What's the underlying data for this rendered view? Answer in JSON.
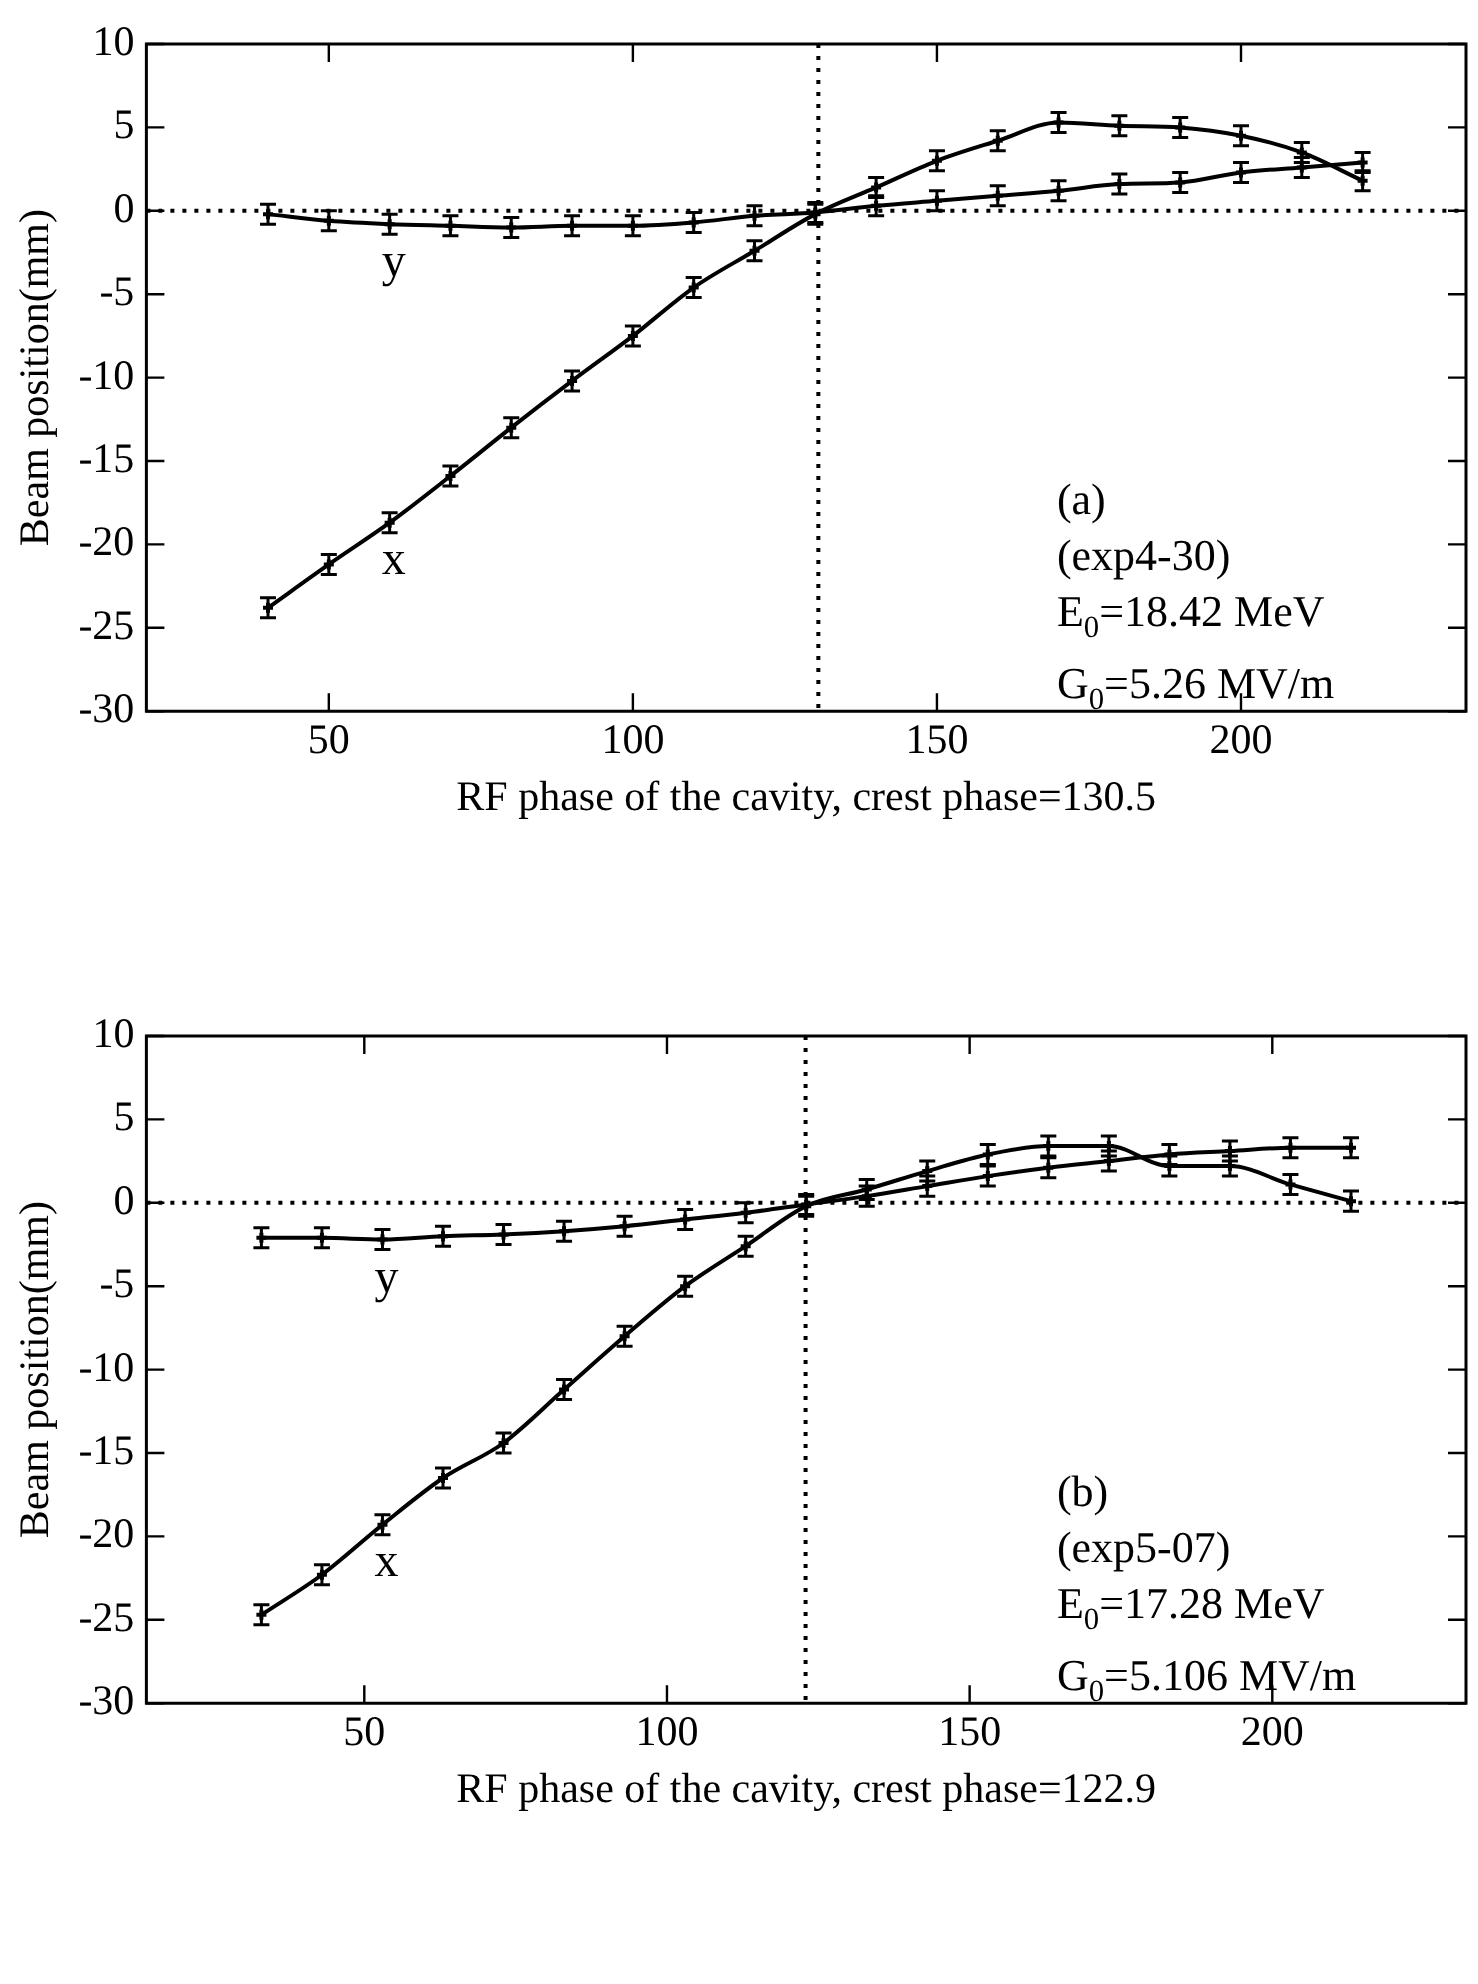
{
  "chart_data": [
    {
      "type": "line",
      "xlabel": "RF phase of the cavity, crest phase=130.5",
      "ylabel": "Beam position(mm)",
      "xlim": [
        20,
        237
      ],
      "xticks": [
        50,
        100,
        150,
        200
      ],
      "ylim": [
        -30,
        10
      ],
      "yticks": [
        -30,
        -25,
        -20,
        -15,
        -10,
        -5,
        0,
        5,
        10
      ],
      "grid": false,
      "legend": false,
      "marker": "cross",
      "line_style": "solid",
      "x": [
        40,
        50,
        60,
        70,
        80,
        90,
        100,
        110,
        120,
        130,
        140,
        150,
        160,
        170,
        180,
        190,
        200,
        210,
        220
      ],
      "series": [
        {
          "name": "x",
          "color": "#000000",
          "values": [
            -23.8,
            -21.2,
            -18.7,
            -15.9,
            -13.0,
            -10.2,
            -7.5,
            -4.6,
            -2.4,
            -0.2,
            1.4,
            3.0,
            4.2,
            5.3,
            5.1,
            5.0,
            4.5,
            3.5,
            1.8
          ],
          "errors": [
            0.6,
            0.6,
            0.6,
            0.6,
            0.6,
            0.6,
            0.6,
            0.6,
            0.6,
            0.6,
            0.6,
            0.6,
            0.6,
            0.6,
            0.6,
            0.6,
            0.6,
            0.6,
            0.6
          ]
        },
        {
          "name": "y",
          "color": "#000000",
          "values": [
            -0.2,
            -0.6,
            -0.8,
            -0.9,
            -1.0,
            -0.9,
            -0.9,
            -0.7,
            -0.3,
            -0.1,
            0.3,
            0.6,
            0.9,
            1.2,
            1.6,
            1.7,
            2.3,
            2.6,
            2.9
          ],
          "errors": [
            0.6,
            0.6,
            0.6,
            0.6,
            0.6,
            0.6,
            0.6,
            0.6,
            0.6,
            0.6,
            0.6,
            0.6,
            0.6,
            0.6,
            0.6,
            0.6,
            0.6,
            0.6,
            0.6
          ]
        }
      ],
      "ref_lines": [
        {
          "axis": "y",
          "value": 0,
          "line_style": "dotted"
        },
        {
          "axis": "x",
          "value": 130.5,
          "line_style": "dotted"
        }
      ],
      "annotations": [
        "(a)",
        "(exp4-30)",
        "E$_{0}$=18.42 MeV",
        "G$_{0}$=5.26 MV/m"
      ]
    },
    {
      "type": "line",
      "xlabel": "RF phase of the cavity, crest phase=122.9",
      "ylabel": "Beam position(mm)",
      "xlim": [
        14,
        232
      ],
      "xticks": [
        50,
        100,
        150,
        200
      ],
      "ylim": [
        -30,
        10
      ],
      "yticks": [
        -30,
        -25,
        -20,
        -15,
        -10,
        -5,
        0,
        5,
        10
      ],
      "grid": false,
      "legend": false,
      "marker": "cross",
      "line_style": "solid",
      "x": [
        33,
        43,
        53,
        63,
        73,
        83,
        93,
        103,
        113,
        123,
        133,
        143,
        153,
        163,
        173,
        183,
        193,
        203,
        213
      ],
      "series": [
        {
          "name": "x",
          "color": "#000000",
          "values": [
            -24.7,
            -22.3,
            -19.3,
            -16.5,
            -14.4,
            -11.2,
            -8.0,
            -5.0,
            -2.6,
            -0.2,
            0.8,
            1.9,
            2.9,
            3.4,
            3.4,
            2.2,
            2.2,
            1.1,
            0.1
          ],
          "errors": [
            0.6,
            0.6,
            0.6,
            0.6,
            0.6,
            0.6,
            0.6,
            0.6,
            0.6,
            0.6,
            0.6,
            0.6,
            0.6,
            0.6,
            0.6,
            0.6,
            0.6,
            0.6,
            0.6
          ]
        },
        {
          "name": "y",
          "color": "#000000",
          "values": [
            -2.1,
            -2.1,
            -2.2,
            -2.0,
            -1.9,
            -1.7,
            -1.4,
            -1.0,
            -0.6,
            -0.1,
            0.4,
            1.0,
            1.6,
            2.1,
            2.5,
            2.9,
            3.1,
            3.3,
            3.3
          ],
          "errors": [
            0.6,
            0.6,
            0.6,
            0.6,
            0.6,
            0.6,
            0.6,
            0.6,
            0.6,
            0.6,
            0.6,
            0.6,
            0.6,
            0.6,
            0.6,
            0.6,
            0.6,
            0.6,
            0.6
          ]
        }
      ],
      "ref_lines": [
        {
          "axis": "y",
          "value": 0,
          "line_style": "dotted"
        },
        {
          "axis": "x",
          "value": 122.9,
          "line_style": "dotted"
        }
      ],
      "annotations": [
        "(b)",
        "(exp5-07)",
        "E$_{0}$=17.28 MeV",
        "G$_{0}$=5.106 MV/m"
      ]
    }
  ]
}
